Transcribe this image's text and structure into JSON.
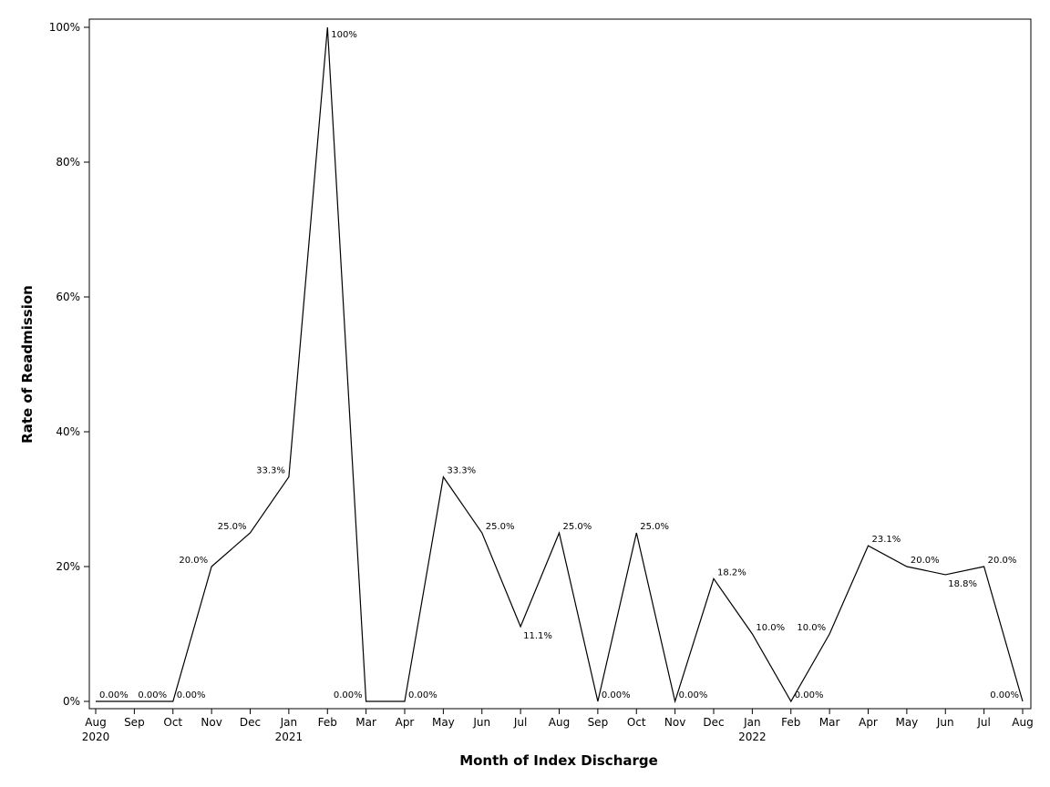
{
  "chart_data": {
    "type": "line",
    "xlabel": "Month of Index Discharge",
    "ylabel": "Rate of Readmission",
    "ylim": [
      0,
      100
    ],
    "y_ticks": [
      "0%",
      "20%",
      "40%",
      "60%",
      "80%",
      "100%"
    ],
    "y_tick_values": [
      0,
      20,
      40,
      60,
      80,
      100
    ],
    "x_ticks": [
      "Aug",
      "Sep",
      "Oct",
      "Nov",
      "Dec",
      "Jan",
      "Feb",
      "Mar",
      "Apr",
      "May",
      "Jun",
      "Jul",
      "Aug",
      "Sep",
      "Oct",
      "Nov",
      "Dec",
      "Jan",
      "Feb",
      "Mar",
      "Apr",
      "May",
      "Jun",
      "Jul",
      "Aug"
    ],
    "year_labels": [
      {
        "index": 0,
        "label": "2020"
      },
      {
        "index": 5,
        "label": "2021"
      },
      {
        "index": 17,
        "label": "2022"
      }
    ],
    "grid": false,
    "series": [
      {
        "x": [
          "2020-08",
          "2020-09",
          "2020-10",
          "2020-11",
          "2020-12",
          "2021-01",
          "2021-02",
          "2021-03",
          "2021-04",
          "2021-05",
          "2021-06",
          "2021-07",
          "2021-08",
          "2021-09",
          "2021-10",
          "2021-11",
          "2021-12",
          "2022-01",
          "2022-02",
          "2022-03",
          "2022-04",
          "2022-05",
          "2022-06",
          "2022-07",
          "2022-08"
        ],
        "values": [
          0,
          0,
          0,
          20.0,
          25.0,
          33.3,
          100,
          0,
          0,
          33.3,
          25.0,
          11.1,
          25.0,
          0,
          25.0,
          0,
          18.2,
          10.0,
          0,
          10.0,
          23.1,
          20.0,
          18.8,
          20.0,
          0
        ],
        "labels": [
          "0.00%",
          "0.00%",
          "0.00%",
          "20.0%",
          "25.0%",
          "33.3%",
          "100%",
          "0.00%",
          "0.00%",
          "33.3%",
          "25.0%",
          "11.1%",
          "25.0%",
          "0.00%",
          "25.0%",
          "0.00%",
          "18.2%",
          "10.0%",
          "0.00%",
          "10.0%",
          "23.1%",
          "20.0%",
          "18.8%",
          "20.0%",
          "0.00%"
        ]
      }
    ],
    "line_color": "#000000"
  }
}
